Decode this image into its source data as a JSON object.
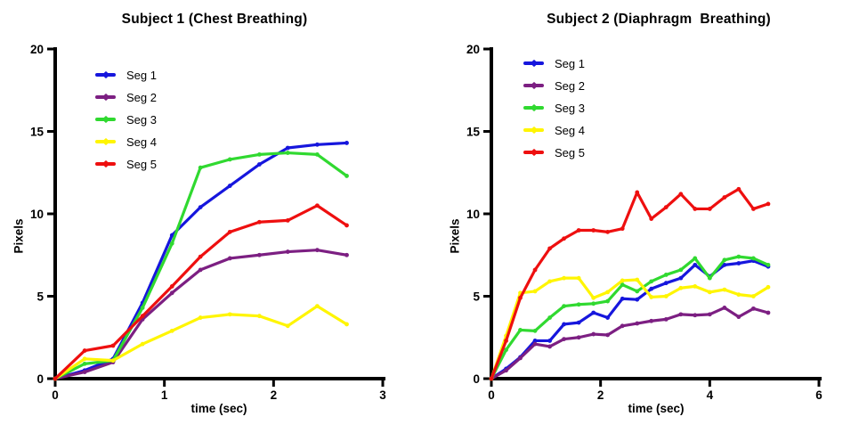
{
  "figure": {
    "background": "#ffffff",
    "axis_color": "#000000",
    "text_color": "#000000"
  },
  "chart_data": [
    {
      "type": "line",
      "title": "Subject 1 (Chest Breathing)",
      "xlabel": "time (sec)",
      "ylabel": "Pixels",
      "xlim": [
        0,
        3
      ],
      "ylim": [
        0,
        20
      ],
      "x_ticks": [
        0,
        1,
        2,
        3
      ],
      "y_ticks": [
        0,
        5,
        10,
        15,
        20
      ],
      "grid": false,
      "legend_position": "upper-left-inside",
      "x": [
        0,
        0.27,
        0.53,
        0.8,
        1.07,
        1.33,
        1.6,
        1.87,
        2.13,
        2.4,
        2.67
      ],
      "series": [
        {
          "name": "Seg 1",
          "color": "#1616dd",
          "values": [
            0,
            0.5,
            1.2,
            4.6,
            8.7,
            10.4,
            11.7,
            13.0,
            14.0,
            14.2,
            14.3
          ]
        },
        {
          "name": "Seg 2",
          "color": "#7c1f82",
          "values": [
            0,
            0.4,
            1.0,
            3.6,
            5.2,
            6.6,
            7.3,
            7.5,
            7.7,
            7.8,
            7.5
          ]
        },
        {
          "name": "Seg 3",
          "color": "#30d930",
          "values": [
            0,
            0.9,
            1.1,
            4.3,
            8.2,
            12.8,
            13.3,
            13.6,
            13.7,
            13.6,
            12.3
          ]
        },
        {
          "name": "Seg 4",
          "color": "#fff500",
          "values": [
            0,
            1.2,
            1.1,
            2.1,
            2.9,
            3.7,
            3.9,
            3.8,
            3.2,
            4.4,
            3.3
          ]
        },
        {
          "name": "Seg 5",
          "color": "#ee0f0f",
          "values": [
            0,
            1.7,
            2.0,
            3.8,
            5.6,
            7.4,
            8.9,
            9.5,
            9.6,
            10.5,
            9.3
          ]
        }
      ]
    },
    {
      "type": "line",
      "title": "Subject 2 (Diaphragm  Breathing)",
      "xlabel": "time (sec)",
      "ylabel": "Pixels",
      "xlim": [
        0,
        6
      ],
      "ylim": [
        0,
        20
      ],
      "x_ticks": [
        0,
        2,
        4,
        6
      ],
      "y_ticks": [
        0,
        5,
        10,
        15,
        20
      ],
      "grid": false,
      "legend_position": "upper-left-inside",
      "x": [
        0,
        0.27,
        0.53,
        0.8,
        1.07,
        1.33,
        1.6,
        1.87,
        2.13,
        2.4,
        2.67,
        2.93,
        3.2,
        3.47,
        3.73,
        4.0,
        4.27,
        4.53,
        4.8,
        5.07
      ],
      "series": [
        {
          "name": "Seg 1",
          "color": "#1616dd",
          "values": [
            0,
            0.6,
            1.3,
            2.3,
            2.3,
            3.3,
            3.4,
            4.0,
            3.7,
            4.85,
            4.8,
            5.45,
            5.8,
            6.1,
            6.9,
            6.2,
            6.9,
            7.0,
            7.15,
            6.8
          ]
        },
        {
          "name": "Seg 2",
          "color": "#7c1f82",
          "values": [
            0,
            0.5,
            1.25,
            2.1,
            1.95,
            2.4,
            2.5,
            2.7,
            2.65,
            3.2,
            3.35,
            3.5,
            3.6,
            3.9,
            3.85,
            3.9,
            4.3,
            3.75,
            4.25,
            4.0
          ]
        },
        {
          "name": "Seg 3",
          "color": "#30d930",
          "values": [
            0,
            1.75,
            2.95,
            2.9,
            3.7,
            4.4,
            4.5,
            4.55,
            4.7,
            5.7,
            5.3,
            5.9,
            6.3,
            6.6,
            7.3,
            6.1,
            7.2,
            7.4,
            7.3,
            6.9
          ]
        },
        {
          "name": "Seg 4",
          "color": "#fff500",
          "values": [
            0,
            2.6,
            5.2,
            5.3,
            5.9,
            6.1,
            6.1,
            4.9,
            5.25,
            5.95,
            6.0,
            4.95,
            5.0,
            5.5,
            5.6,
            5.25,
            5.4,
            5.1,
            5.0,
            5.55
          ]
        },
        {
          "name": "Seg 5",
          "color": "#ee0f0f",
          "values": [
            0,
            2.3,
            4.9,
            6.6,
            7.9,
            8.5,
            9.0,
            9.0,
            8.9,
            9.1,
            11.3,
            9.7,
            10.4,
            11.2,
            10.3,
            10.3,
            11.0,
            11.5,
            10.3,
            10.6
          ]
        }
      ]
    }
  ]
}
